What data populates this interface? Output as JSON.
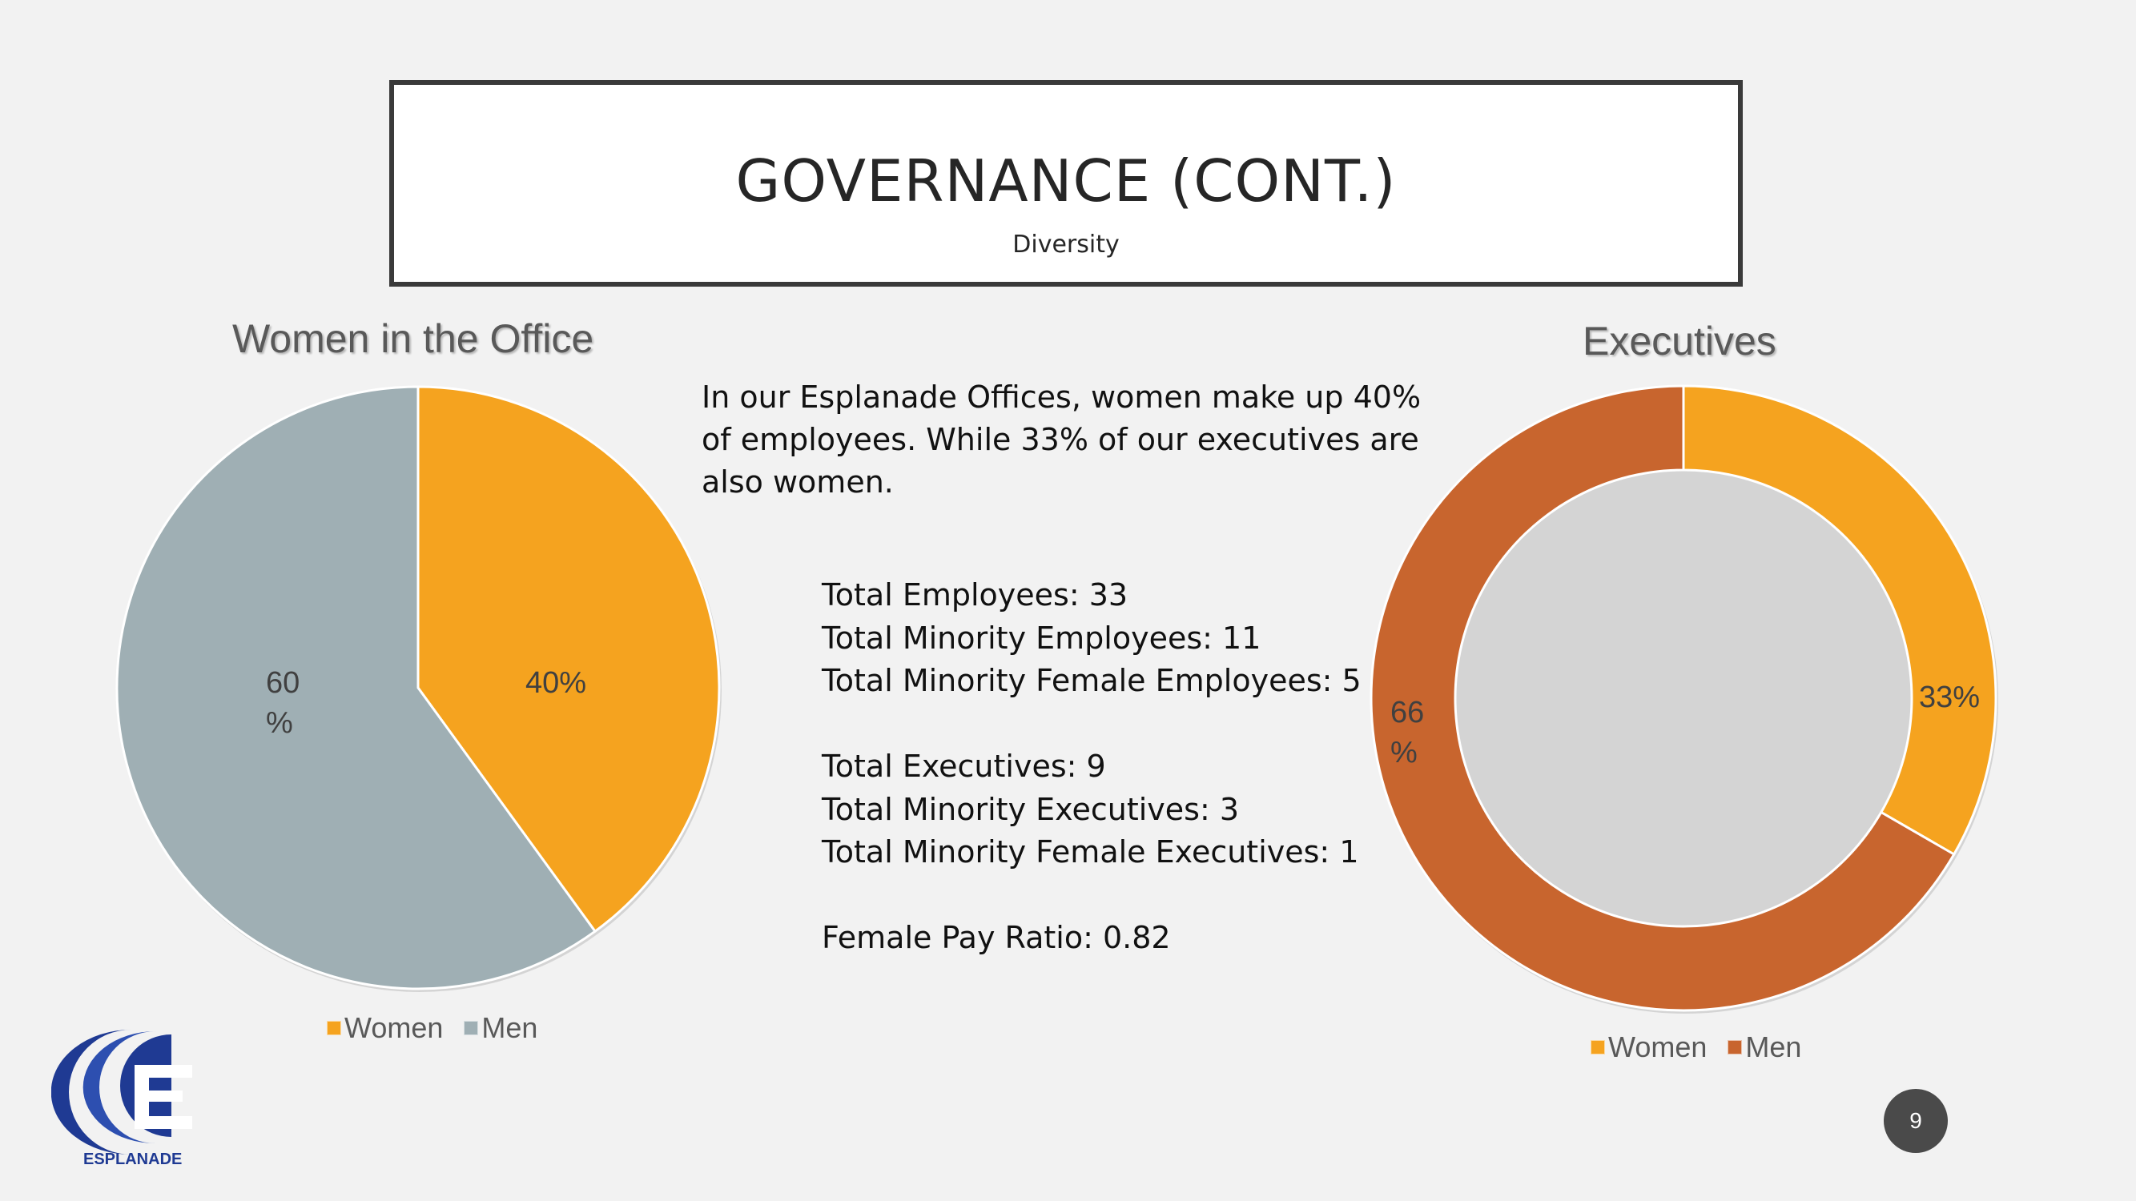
{
  "slide": {
    "title": "GOVERNANCE (CONT.)",
    "subtitle": "Diversity",
    "intro": "In our Esplanade Offices, women make up 40% of employees. While 33% of our executives are also women.",
    "stats": {
      "employees": "Total Employees: 33",
      "minority_employees": "Total Minority Employees: 11",
      "minority_female_employees": "Total Minority Female Employees: 5",
      "executives": "Total Executives: 9",
      "minority_executives": "Total Minority Executives: 3",
      "minority_female_executives": "Total Minority Female Executives: 1",
      "pay_ratio": "Female Pay Ratio: 0.82"
    },
    "page_number": "9",
    "logo_text": "ESPLANADE"
  },
  "colors": {
    "women": "#f5a31f",
    "men_office": "#9fafb4",
    "men_exec": "#c8652e"
  },
  "chart_data": [
    {
      "type": "pie",
      "title": "Women in the Office",
      "categories": [
        "Women",
        "Men"
      ],
      "values": [
        40,
        60
      ],
      "data_labels": [
        "40%",
        "60\n%"
      ],
      "legend": "bottom",
      "colors": [
        "#f5a31f",
        "#9fafb4"
      ]
    },
    {
      "type": "pie",
      "style": "donut",
      "title": "Executives",
      "categories": [
        "Women",
        "Men"
      ],
      "values": [
        33,
        66
      ],
      "data_labels": [
        "33%",
        "66\n%"
      ],
      "legend": "bottom",
      "colors": [
        "#f5a31f",
        "#c8652e"
      ]
    }
  ]
}
